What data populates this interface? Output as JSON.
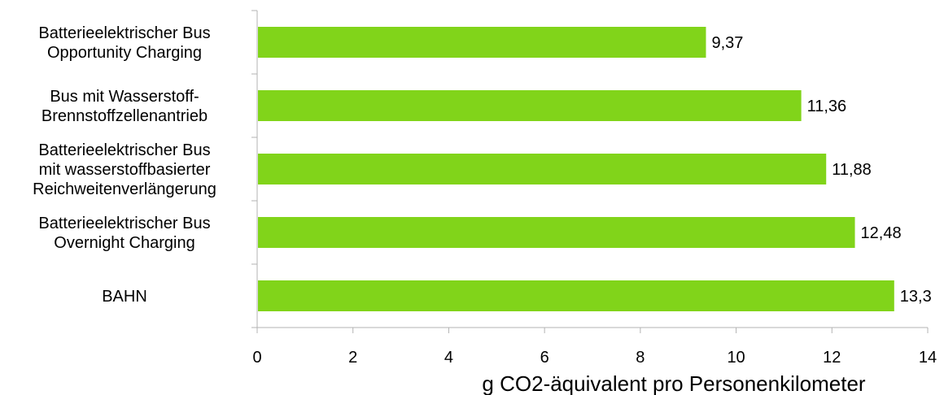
{
  "chart_data": {
    "type": "bar",
    "orientation": "horizontal",
    "categories": [
      [
        "Batterieelektrischer Bus",
        "Opportunity Charging"
      ],
      [
        "Bus mit Wasserstoff-",
        "Brennstoffzellenantrieb"
      ],
      [
        "Batterieelektrischer Bus",
        "mit wasserstoffbasierter",
        "Reichweitenverlängerung"
      ],
      [
        "Batterieelektrischer Bus",
        "Overnight Charging"
      ],
      [
        "BAHN"
      ]
    ],
    "values": [
      9.37,
      11.36,
      11.88,
      12.48,
      13.3
    ],
    "value_labels": [
      "9,37",
      "11,36",
      "11,88",
      "12,48",
      "13,3"
    ],
    "xlabel": "g CO2-äquivalent pro Personenkilometer",
    "xlim": [
      0,
      14
    ],
    "xticks": [
      0,
      2,
      4,
      6,
      8,
      10,
      12,
      14
    ],
    "grid": false,
    "legend": "none",
    "bar_color": "#81d41a"
  }
}
